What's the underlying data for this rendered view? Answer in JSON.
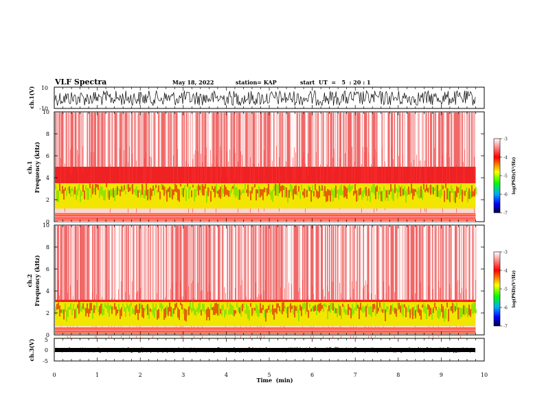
{
  "header": {
    "title": "VLF Spectra",
    "date": "May 18, 2022",
    "station": "station= KAP",
    "start": "start  UT  =   5  : 20 : 1"
  },
  "colors": {
    "waveform": "#000000",
    "colormap": [
      "#ffffff",
      "#ff0000",
      "#ffff00",
      "#00ff00",
      "#00aaff",
      "#0000ff",
      "#000044"
    ]
  },
  "chart_data": [
    {
      "type": "line",
      "name": "ch1-waveform",
      "ylabel": "ch.1(V)",
      "ylim": [
        -10,
        10
      ],
      "yticks": [
        "10",
        "-10"
      ],
      "xlim": [
        0,
        10
      ],
      "grid": false
    },
    {
      "type": "heatmap",
      "name": "ch1-spectrogram",
      "ylabel": "ch.1\nFrequency  (kHz)",
      "ylim": [
        0,
        10
      ],
      "yticks": [
        "0",
        "2",
        "4",
        "6",
        "8",
        "10"
      ],
      "xlim": [
        0,
        10
      ],
      "data_extent_min": 9.8,
      "colorbar": {
        "label": "log(PSD)(V²/Hz)",
        "range": [
          -7,
          -3
        ],
        "ticks": [
          "-3",
          "-4",
          "-5",
          "-6",
          "-7"
        ]
      }
    },
    {
      "type": "heatmap",
      "name": "ch2-spectrogram",
      "ylabel": "ch.2\nFrequency  (kHz)",
      "ylim": [
        0,
        10
      ],
      "yticks": [
        "0",
        "2",
        "4",
        "6",
        "8",
        "10"
      ],
      "xlim": [
        0,
        10
      ],
      "data_extent_min": 9.8,
      "colorbar": {
        "label": "log(PSD)(V²/Hz)",
        "range": [
          -7,
          -3
        ],
        "ticks": [
          "-3",
          "-4",
          "-5",
          "-6",
          "-7"
        ]
      }
    },
    {
      "type": "line",
      "name": "ch3-waveform",
      "ylabel": "ch.3(V)",
      "ylim": [
        -5,
        5
      ],
      "yticks": [
        "5",
        "0",
        "-5"
      ],
      "xlim": [
        0,
        10
      ],
      "grid": false
    }
  ],
  "xaxis": {
    "label": "Time  (min)",
    "ticks": [
      "0",
      "1",
      "2",
      "3",
      "4",
      "5",
      "6",
      "7",
      "8",
      "9",
      "10"
    ],
    "range": [
      0,
      10
    ]
  }
}
